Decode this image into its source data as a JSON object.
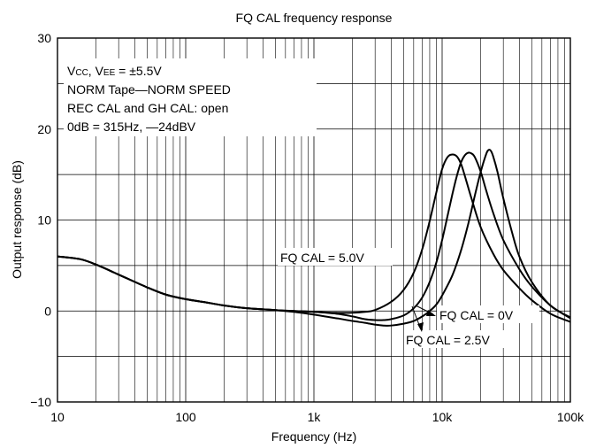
{
  "chart_data": {
    "type": "line",
    "title": "FQ CAL frequency response",
    "xlabel": "Frequency (Hz)",
    "ylabel": "Output response (dB)",
    "x_scale": "log",
    "xlim": [
      10,
      100000
    ],
    "ylim": [
      -10,
      30
    ],
    "x_ticks": [
      10,
      100,
      1000,
      10000,
      100000
    ],
    "x_tick_labels": [
      "10",
      "100",
      "1k",
      "10k",
      "100k"
    ],
    "y_ticks": [
      -10,
      0,
      10,
      20,
      30
    ],
    "y_tick_labels": [
      "−10",
      "0",
      "10",
      "20",
      "30"
    ],
    "y_grid_step": 5,
    "grid": true,
    "conditions": [
      "Vcc, Vee = ±5.5V",
      "NORM Tape—NORM SPEED",
      "REC CAL and GH CAL:  open",
      "0dB = 315Hz, —24dBV"
    ],
    "series": [
      {
        "name": "FQ CAL = 5.0V",
        "x": [
          10,
          15,
          20,
          30,
          50,
          70,
          100,
          150,
          200,
          300,
          500,
          700,
          1000,
          1500,
          2000,
          2500,
          3000,
          4000,
          5000,
          6000,
          7000,
          8000,
          9000,
          10000,
          11000,
          12000,
          13000,
          14000,
          15000,
          17000,
          20000,
          25000,
          30000,
          40000,
          50000,
          70000,
          100000
        ],
        "values": [
          6.0,
          5.7,
          5.1,
          4.0,
          2.6,
          1.8,
          1.3,
          0.9,
          0.6,
          0.3,
          0.1,
          0.0,
          -0.1,
          -0.2,
          -0.2,
          -0.1,
          0.1,
          1.0,
          2.3,
          4.2,
          6.8,
          9.9,
          13.0,
          15.6,
          16.9,
          17.2,
          17.0,
          16.2,
          14.9,
          12.3,
          9.2,
          6.3,
          4.5,
          2.5,
          1.2,
          -0.3,
          -1.2
        ]
      },
      {
        "name": "FQ CAL = 2.5V",
        "x": [
          10,
          15,
          20,
          30,
          50,
          70,
          100,
          150,
          200,
          300,
          500,
          700,
          1000,
          1500,
          2000,
          2500,
          3000,
          3500,
          4000,
          5000,
          6000,
          7000,
          8000,
          9000,
          10000,
          11000,
          12000,
          13000,
          14000,
          15000,
          16000,
          17000,
          18000,
          20000,
          22000,
          25000,
          30000,
          40000,
          50000,
          70000,
          100000
        ],
        "values": [
          6.0,
          5.7,
          5.1,
          4.0,
          2.6,
          1.8,
          1.3,
          0.9,
          0.6,
          0.3,
          0.1,
          0.0,
          -0.1,
          -0.3,
          -0.6,
          -0.9,
          -1.0,
          -1.0,
          -0.9,
          -0.5,
          0.3,
          1.5,
          3.2,
          5.3,
          7.8,
          10.4,
          12.8,
          14.8,
          16.3,
          17.1,
          17.4,
          17.3,
          16.9,
          15.3,
          13.3,
          10.8,
          7.8,
          4.6,
          2.7,
          0.6,
          -0.8
        ]
      },
      {
        "name": "FQ CAL = 0V",
        "x": [
          10,
          15,
          20,
          30,
          50,
          70,
          100,
          150,
          200,
          300,
          500,
          700,
          1000,
          1500,
          2000,
          2500,
          3000,
          3500,
          4000,
          5000,
          6000,
          7000,
          8000,
          9000,
          10000,
          12000,
          14000,
          16000,
          18000,
          20000,
          22000,
          23000,
          24000,
          25000,
          27000,
          30000,
          35000,
          40000,
          50000,
          70000,
          100000
        ],
        "values": [
          6.0,
          5.7,
          5.1,
          4.0,
          2.6,
          1.8,
          1.3,
          0.9,
          0.6,
          0.3,
          0.1,
          -0.1,
          -0.4,
          -0.8,
          -1.1,
          -1.3,
          -1.5,
          -1.6,
          -1.6,
          -1.4,
          -1.1,
          -0.6,
          0.0,
          0.7,
          1.7,
          3.9,
          6.6,
          9.6,
          12.7,
          15.3,
          17.2,
          17.7,
          17.6,
          17.0,
          15.3,
          12.4,
          8.7,
          6.0,
          3.2,
          0.6,
          -0.7
        ]
      }
    ]
  }
}
